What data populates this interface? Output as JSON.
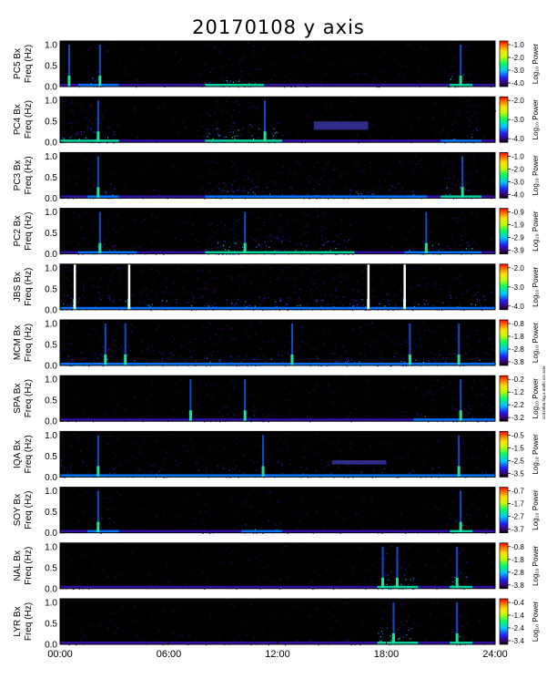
{
  "chart_data": {
    "type": "heatmap",
    "title": "20170108 y axis",
    "x_ticks": [
      "00:00",
      "06:00",
      "12:00",
      "18:00",
      "24:00"
    ],
    "x_range_hours": [
      0,
      24
    ],
    "y_ticks": [
      "0.0",
      "0.5",
      "1.0"
    ],
    "y_range_hz": [
      0,
      1.0
    ],
    "colorbar_label": "Log₁₀ Power",
    "side_note": "ccd mbm fag a maflo ccr scre",
    "panels": [
      {
        "station": "PC5",
        "ylabel_1": "PC5 Bx",
        "ylabel_2": "Freq (Hz)",
        "cbar_ticks": [
          "-1.0",
          "-2.0",
          "-3.0",
          "-4.0"
        ],
        "activity": [
          [
            1,
            3,
            0.4
          ],
          [
            8,
            11,
            0.7
          ],
          [
            21.5,
            22.5,
            0.8
          ]
        ],
        "bands": [],
        "spikes": [
          0.5,
          2.2,
          22.1
        ]
      },
      {
        "station": "PC4",
        "ylabel_1": "PC4 Bx",
        "ylabel_2": "Freq (Hz)",
        "cbar_ticks": [
          "-2.0",
          "-3.0",
          "-4.0"
        ],
        "activity": [
          [
            0,
            3,
            0.7
          ],
          [
            8,
            12,
            0.9
          ],
          [
            21,
            23,
            0.6
          ]
        ],
        "bands": [
          [
            14,
            17,
            0.3,
            0.5
          ]
        ],
        "spikes": [
          2.1,
          11.3
        ]
      },
      {
        "station": "PC3",
        "ylabel_1": "PC3 Bx",
        "ylabel_2": "Freq (Hz)",
        "cbar_ticks": [
          "-1.0",
          "-2.0",
          "-3.0",
          "-4.0"
        ],
        "activity": [
          [
            1.5,
            3,
            0.6
          ],
          [
            8,
            20,
            0.5
          ],
          [
            21,
            23,
            0.7
          ]
        ],
        "bands": [],
        "spikes": [
          2.1,
          22.2
        ]
      },
      {
        "station": "PC2",
        "ylabel_1": "PC2 Bx",
        "ylabel_2": "Freq (Hz)",
        "cbar_ticks": [
          "-0.9",
          "-1.9",
          "-2.9",
          "-3.9"
        ],
        "activity": [
          [
            1,
            4,
            0.5
          ],
          [
            8,
            16,
            0.7
          ],
          [
            19,
            23,
            0.6
          ]
        ],
        "bands": [],
        "spikes": [
          2.2,
          10.2,
          20.2
        ]
      },
      {
        "station": "JBS",
        "ylabel_1": "JBS Bx",
        "ylabel_2": "Freq (Hz)",
        "cbar_ticks": [
          "-2.0",
          "-3.0",
          "-4.0"
        ],
        "activity": [
          [
            0,
            24,
            0.6
          ]
        ],
        "bands": [],
        "spikes": [
          0.8,
          3.8,
          17,
          19
        ],
        "white_lines": [
          0.8,
          3.8,
          17,
          19
        ]
      },
      {
        "station": "MCM",
        "ylabel_1": "MCM Bx",
        "ylabel_2": "Freq (Hz)",
        "cbar_ticks": [
          "-0.8",
          "-1.8",
          "-2.8",
          "-3.8"
        ],
        "activity": [
          [
            0,
            24,
            0.5
          ]
        ],
        "bands": [],
        "spikes": [
          2.5,
          3.6,
          12.8,
          19.3,
          22
        ]
      },
      {
        "station": "SPA",
        "ylabel_1": "SPA Bx",
        "ylabel_2": "Freq (Hz)",
        "cbar_ticks": [
          "-0.2",
          "-1.2",
          "-2.2",
          "-3.2"
        ],
        "activity": [
          [
            7.2,
            11.3,
            0.3
          ],
          [
            19.5,
            24,
            0.5
          ]
        ],
        "bands": [],
        "spikes": [
          7.2,
          10.2,
          22.1
        ]
      },
      {
        "station": "IQA",
        "ylabel_1": "IQA Bx",
        "ylabel_2": "Freq (Hz)",
        "cbar_ticks": [
          "-0.5",
          "-1.5",
          "-2.5",
          "-3.5"
        ],
        "activity": [
          [
            0,
            24,
            0.4
          ]
        ],
        "bands": [
          [
            15,
            18,
            0.3,
            0.4
          ]
        ],
        "spikes": [
          2.1,
          11.2,
          22
        ]
      },
      {
        "station": "SOY",
        "ylabel_1": "SOY Bx",
        "ylabel_2": "Freq (Hz)",
        "cbar_ticks": [
          "-0.7",
          "-1.7",
          "-2.7",
          "-3.7"
        ],
        "activity": [
          [
            1.5,
            3,
            0.4
          ],
          [
            10,
            12,
            0.4
          ],
          [
            21.5,
            22.5,
            0.8
          ]
        ],
        "bands": [],
        "spikes": [
          2.1,
          22.1
        ]
      },
      {
        "station": "NAL",
        "ylabel_1": "NAL Bx",
        "ylabel_2": "Freq (Hz)",
        "cbar_ticks": [
          "-0.8",
          "-1.8",
          "-2.8",
          "-3.8"
        ],
        "activity": [
          [
            17.5,
            19.5,
            0.9
          ],
          [
            21.5,
            22.5,
            0.9
          ]
        ],
        "bands": [],
        "spikes": [
          17.8,
          18.6,
          21.9
        ]
      },
      {
        "station": "LYR",
        "ylabel_1": "LYR Bx",
        "ylabel_2": "Freq (Hz)",
        "cbar_ticks": [
          "-0.4",
          "-1.4",
          "-2.4",
          "-3.4"
        ],
        "activity": [
          [
            17.5,
            19.5,
            0.9
          ],
          [
            21.5,
            22.5,
            0.8
          ]
        ],
        "bands": [],
        "spikes": [
          18.4,
          21.9
        ]
      }
    ]
  }
}
